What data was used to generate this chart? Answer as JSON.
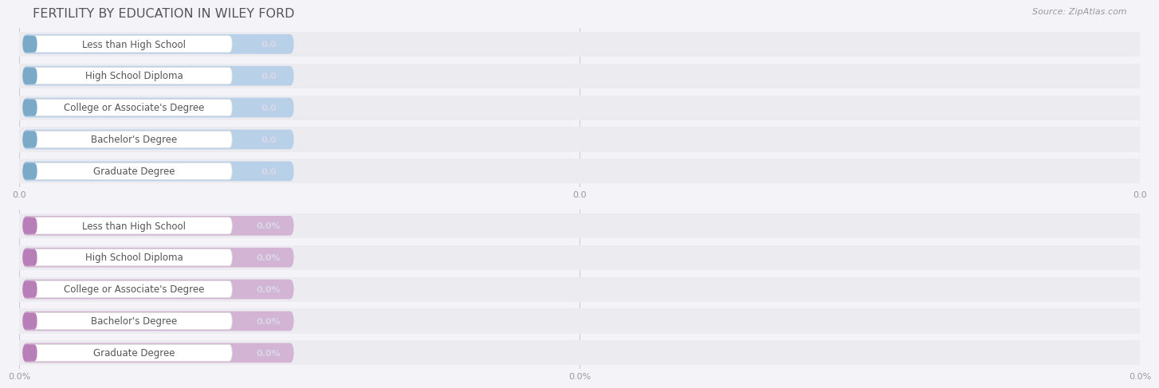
{
  "title": "FERTILITY BY EDUCATION IN WILEY FORD",
  "source": "Source: ZipAtlas.com",
  "top_categories": [
    "Less than High School",
    "High School Diploma",
    "College or Associate's Degree",
    "Bachelor's Degree",
    "Graduate Degree"
  ],
  "bottom_categories": [
    "Less than High School",
    "High School Diploma",
    "College or Associate's Degree",
    "Bachelor's Degree",
    "Graduate Degree"
  ],
  "top_values": [
    0.0,
    0.0,
    0.0,
    0.0,
    0.0
  ],
  "bottom_values": [
    0.0,
    0.0,
    0.0,
    0.0,
    0.0
  ],
  "top_value_labels": [
    "0.0",
    "0.0",
    "0.0",
    "0.0",
    "0.0"
  ],
  "bottom_value_labels": [
    "0.0%",
    "0.0%",
    "0.0%",
    "0.0%",
    "0.0%"
  ],
  "top_xticks": [
    "0.0",
    "0.0",
    "0.0"
  ],
  "bottom_xticks": [
    "0.0%",
    "0.0%",
    "0.0%"
  ],
  "top_bar_color": "#b8d0e8",
  "bottom_bar_color": "#d4b4d4",
  "top_label_bg": "#ffffff",
  "bottom_label_bg": "#ffffff",
  "top_accent_color": "#7aaac8",
  "bottom_accent_color": "#b87eb8",
  "bar_height": 0.62,
  "row_bg_color": "#ebebf0",
  "panel_bg": "#f4f4f8",
  "grid_color": "#ccccdd",
  "title_color": "#555555",
  "label_text_color": "#555555",
  "value_text_color": "#d8d8e8",
  "tick_text_color": "#999999",
  "title_fontsize": 11.5,
  "label_fontsize": 8.5,
  "value_fontsize": 8,
  "tick_fontsize": 8,
  "source_fontsize": 8
}
